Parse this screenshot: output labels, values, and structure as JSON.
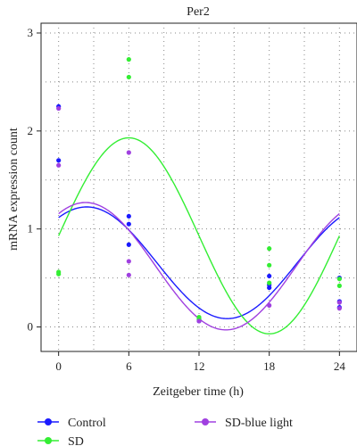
{
  "chart_data": {
    "type": "scatter",
    "title": "Per2",
    "xlabel": "Zeitgeber time (h)",
    "ylabel": "mRNA expression count",
    "xlim": [
      -1.5,
      25.5
    ],
    "ylim": [
      -0.25,
      3.1
    ],
    "xticks": [
      0,
      6,
      12,
      18,
      24
    ],
    "yticks": [
      0,
      1,
      2,
      3
    ],
    "grid": true,
    "legend": "bottom",
    "series": [
      {
        "name": "Control",
        "color": "#1a1aff",
        "points": [
          [
            0,
            2.25
          ],
          [
            0,
            1.7
          ],
          [
            6,
            1.13
          ],
          [
            6,
            1.05
          ],
          [
            6,
            0.84
          ],
          [
            12,
            0.08
          ],
          [
            12,
            0.06
          ],
          [
            18,
            0.52
          ],
          [
            18,
            0.43
          ],
          [
            18,
            0.4
          ],
          [
            24,
            0.5
          ],
          [
            24,
            0.26
          ],
          [
            24,
            0.2
          ]
        ],
        "fit": {
          "mesor": 0.655,
          "amplitude": 0.57,
          "acrophase": 2.4,
          "period": 24
        }
      },
      {
        "name": "SD",
        "color": "#33ee33",
        "points": [
          [
            0,
            0.56
          ],
          [
            0,
            0.54
          ],
          [
            6,
            2.73
          ],
          [
            6,
            2.55
          ],
          [
            12,
            0.1
          ],
          [
            12,
            0.08
          ],
          [
            18,
            0.8
          ],
          [
            18,
            0.63
          ],
          [
            18,
            0.45
          ],
          [
            24,
            0.49
          ],
          [
            24,
            0.42
          ]
        ],
        "fit": {
          "mesor": 0.93,
          "amplitude": 1.0,
          "acrophase": 6.0,
          "period": 24
        }
      },
      {
        "name": "SD-blue light",
        "color": "#a040e0",
        "points": [
          [
            0,
            2.23
          ],
          [
            0,
            1.65
          ],
          [
            6,
            1.78
          ],
          [
            6,
            0.67
          ],
          [
            6,
            0.53
          ],
          [
            12,
            0.06
          ],
          [
            18,
            0.22
          ],
          [
            24,
            0.25
          ],
          [
            24,
            0.19
          ]
        ],
        "fit": {
          "mesor": 0.62,
          "amplitude": 0.65,
          "acrophase": 2.3,
          "period": 24
        }
      }
    ]
  }
}
